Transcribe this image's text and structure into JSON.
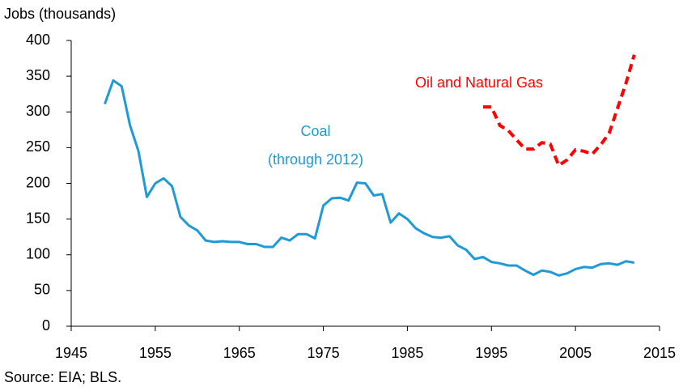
{
  "chart_data": {
    "type": "line",
    "y_label": "Jobs (thousands)",
    "source": "Source: EIA; BLS.",
    "annotation": "(through 2012)",
    "xlim": [
      1945,
      2015
    ],
    "xticks": [
      1945,
      1955,
      1965,
      1975,
      1985,
      1995,
      2005,
      2015
    ],
    "ylim": [
      0,
      400
    ],
    "yticks": [
      0,
      50,
      100,
      150,
      200,
      250,
      300,
      350,
      400
    ],
    "grid": false,
    "series": [
      {
        "name": "Coal",
        "color": "#1f9ad6",
        "dashed": false,
        "x": [
          1949,
          1950,
          1951,
          1952,
          1953,
          1954,
          1955,
          1956,
          1957,
          1958,
          1959,
          1960,
          1961,
          1962,
          1963,
          1964,
          1965,
          1966,
          1967,
          1968,
          1969,
          1970,
          1971,
          1972,
          1973,
          1974,
          1975,
          1976,
          1977,
          1978,
          1979,
          1980,
          1981,
          1982,
          1983,
          1984,
          1985,
          1986,
          1987,
          1988,
          1989,
          1990,
          1991,
          1992,
          1993,
          1994,
          1995,
          1996,
          1997,
          1998,
          1999,
          2000,
          2001,
          2002,
          2003,
          2004,
          2005,
          2006,
          2007,
          2008,
          2009,
          2010,
          2011,
          2012
        ],
        "values": [
          311,
          344,
          336,
          281,
          245,
          181,
          200,
          207,
          196,
          153,
          141,
          134,
          120,
          118,
          119,
          118,
          118,
          115,
          115,
          111,
          111,
          124,
          120,
          129,
          129,
          123,
          169,
          179,
          180,
          176,
          201,
          200,
          183,
          185,
          145,
          158,
          150,
          137,
          130,
          125,
          124,
          126,
          113,
          107,
          94,
          97,
          90,
          88,
          85,
          85,
          78,
          72,
          78,
          76,
          71,
          74,
          80,
          83,
          82,
          87,
          88,
          86,
          91,
          89
        ]
      },
      {
        "name": "Oil and Natural Gas",
        "color": "#ff0000",
        "dashed": true,
        "x": [
          1994,
          1995,
          1996,
          1997,
          1998,
          1999,
          2000,
          2001,
          2002,
          2003,
          2004,
          2005,
          2006,
          2007,
          2008,
          2009,
          2010,
          2011,
          2012
        ],
        "values": [
          307,
          307,
          281,
          274,
          261,
          248,
          248,
          257,
          255,
          225,
          233,
          247,
          245,
          241,
          254,
          270,
          305,
          340,
          380
        ]
      }
    ]
  }
}
